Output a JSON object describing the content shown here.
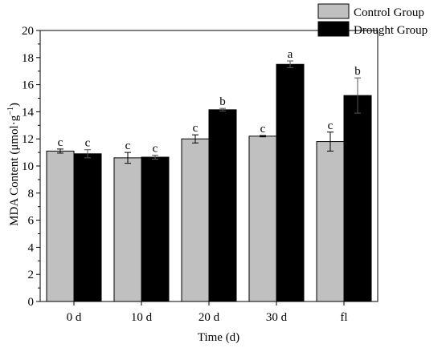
{
  "chart_data": {
    "type": "bar",
    "title": "",
    "xlabel": "Time (d)",
    "ylabel_main": "MDA Content (μmol·g",
    "ylabel_sup": "−1",
    "ylabel_end": ")",
    "ylim": [
      0,
      20
    ],
    "yticks": [
      0,
      2,
      4,
      6,
      8,
      10,
      12,
      14,
      16,
      18,
      20
    ],
    "grid": false,
    "legend_position": "top-right",
    "categories": [
      "0 d",
      "10 d",
      "20 d",
      "30 d",
      "fl"
    ],
    "series": [
      {
        "name": "Control Group",
        "color": "#c0c0c0",
        "values": [
          11.1,
          10.6,
          12.0,
          12.2,
          11.8
        ],
        "errors": [
          0.15,
          0.4,
          0.3,
          0.05,
          0.7
        ],
        "letters": [
          "c",
          "c",
          "c",
          "c",
          "c"
        ]
      },
      {
        "name": "Drought Group",
        "color": "#000000",
        "values": [
          10.9,
          10.65,
          14.15,
          17.5,
          15.2
        ],
        "errors": [
          0.3,
          0.15,
          0.1,
          0.25,
          1.3
        ],
        "letters": [
          "c",
          "c",
          "b",
          "a",
          "b"
        ]
      }
    ]
  }
}
